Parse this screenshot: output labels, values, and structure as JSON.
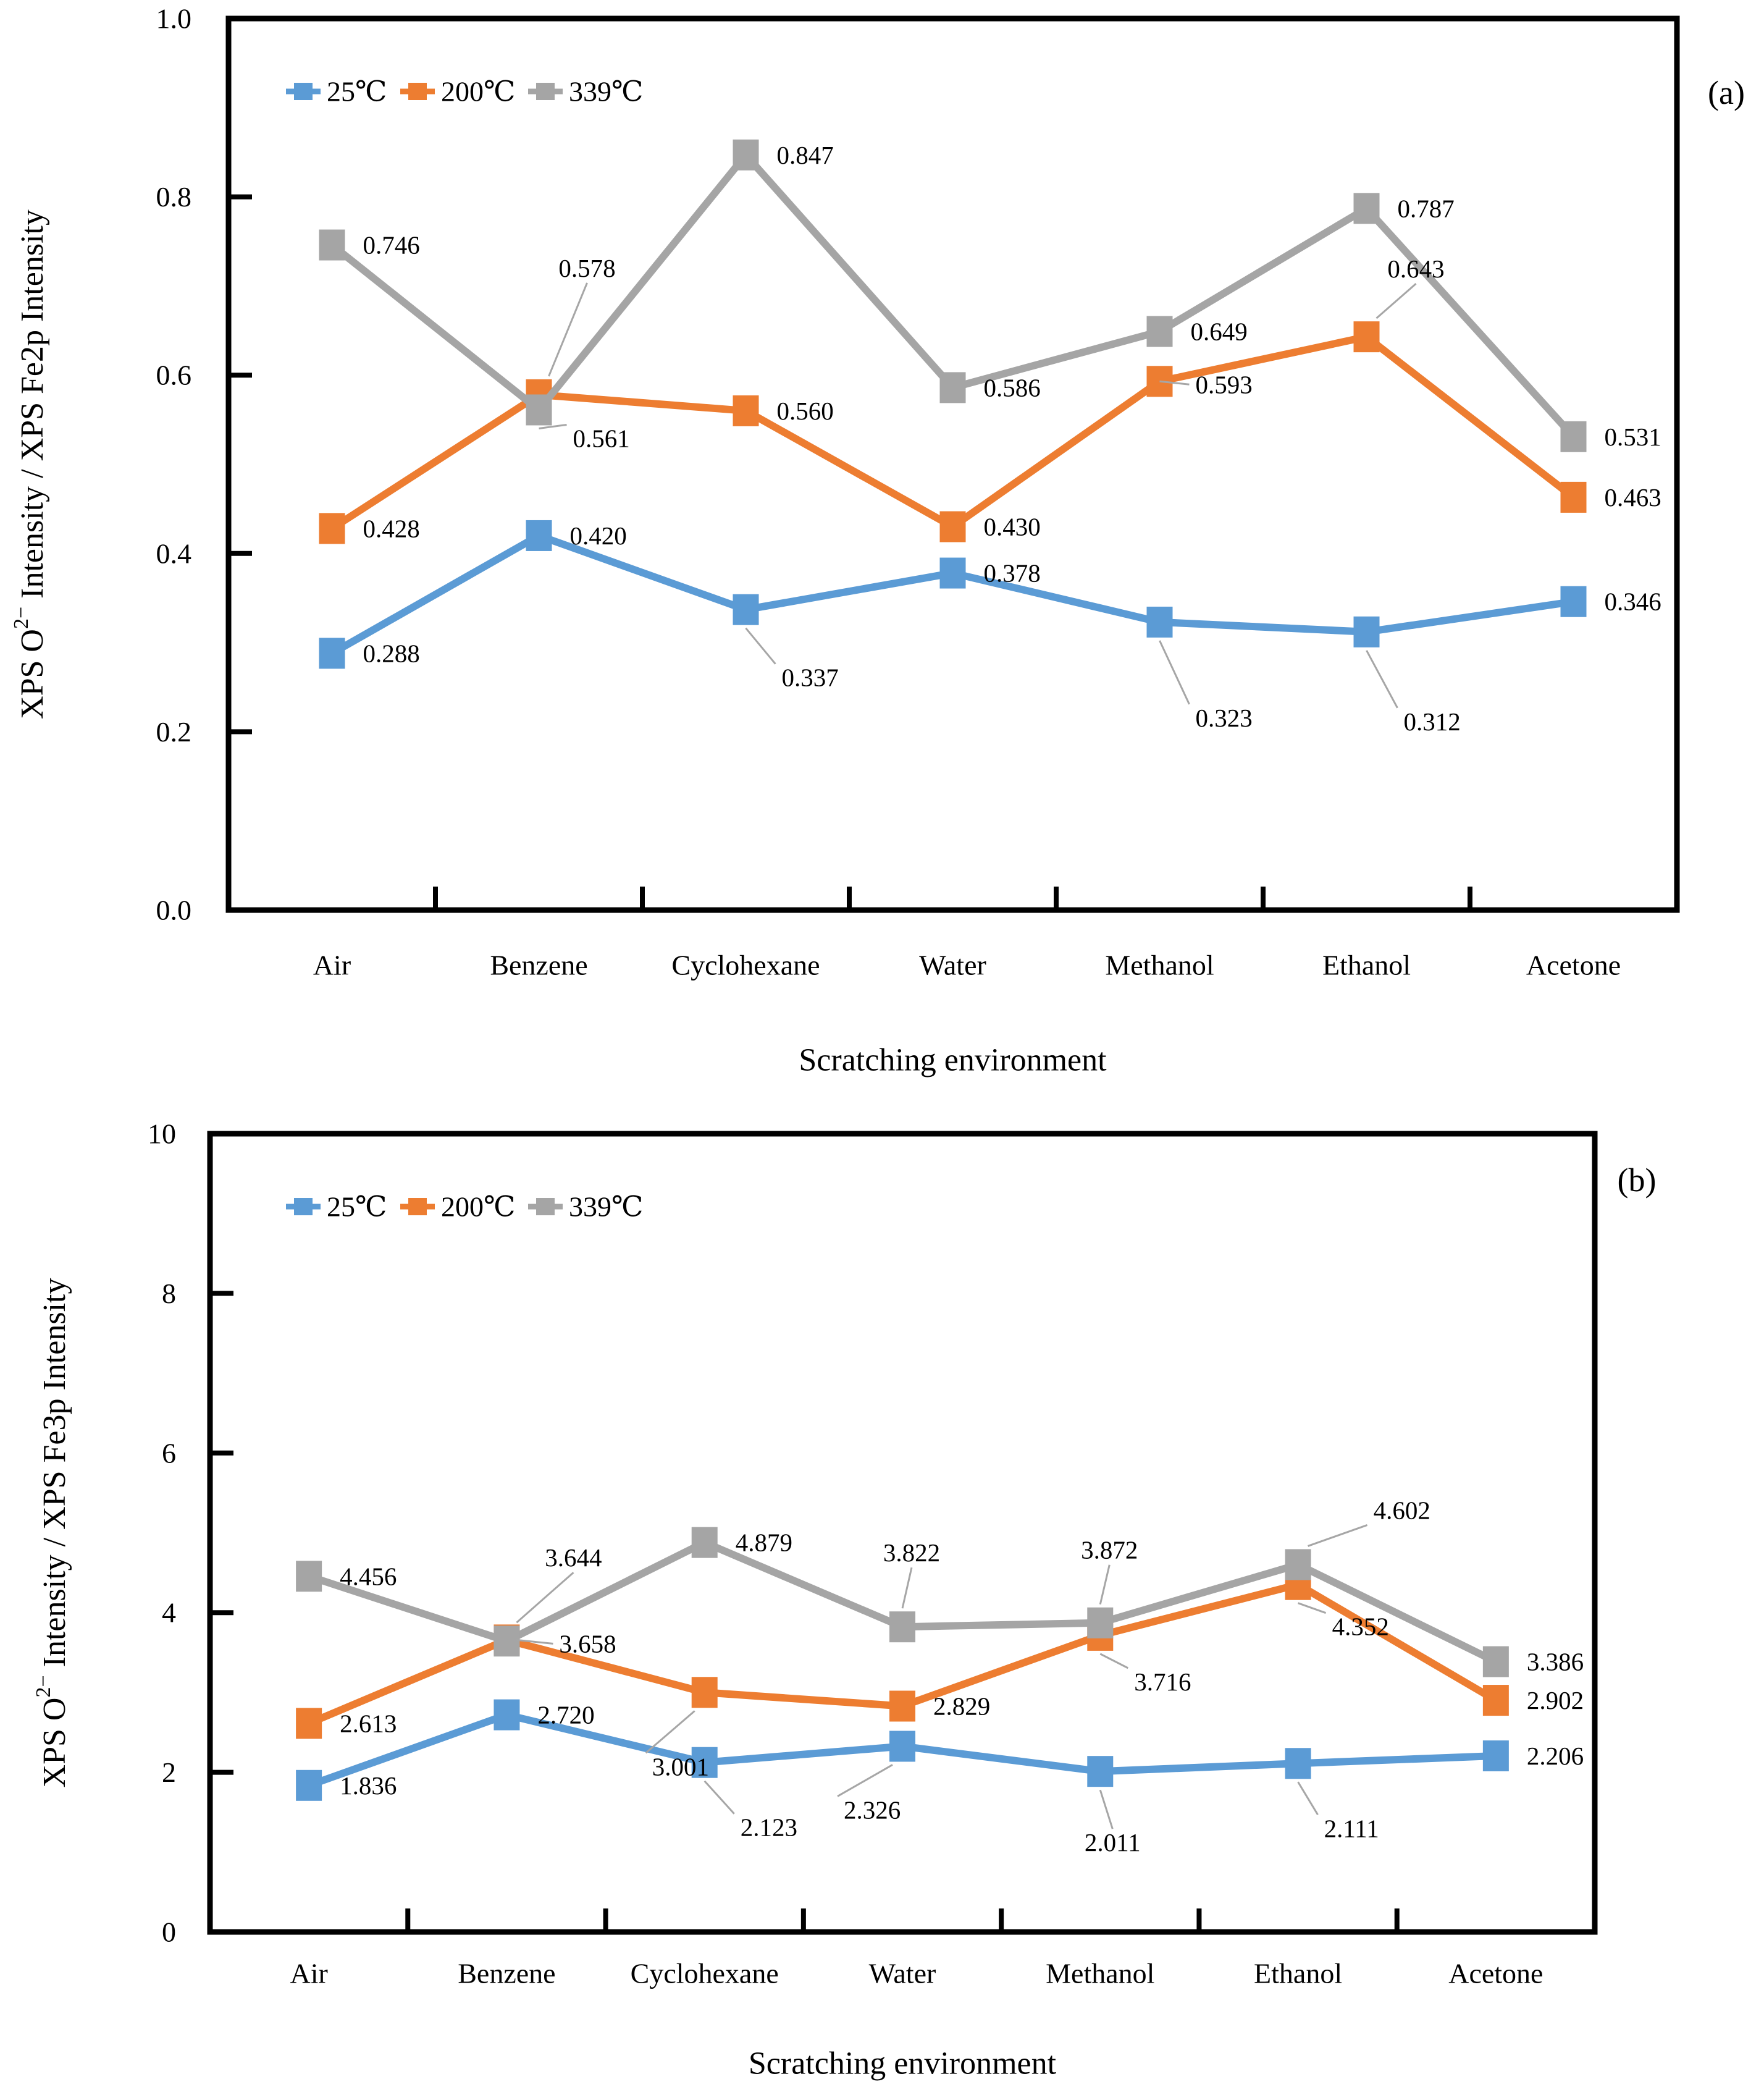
{
  "colors": {
    "series_blue": "#5B9BD5",
    "series_orange": "#ED7D31",
    "series_gray": "#A5A5A5",
    "axis": "#000000",
    "leader_line": "#A6A6A6",
    "background": "#FFFFFF"
  },
  "chart_data": [
    {
      "type": "line",
      "panel_label": "(a)",
      "title": "",
      "xlabel": "Scratching environment",
      "ylabel": {
        "pre": "XPS O",
        "sup": "2−",
        "post": " Intensity / XPS Fe2p Intensity"
      },
      "categories": [
        "Air",
        "Benzene",
        "Cyclohexane",
        "Water",
        "Methanol",
        "Ethanol",
        "Acetone"
      ],
      "ylim": [
        0,
        1.0
      ],
      "ytick_labels": [
        "0.0",
        "0.2",
        "0.4",
        "0.6",
        "0.8",
        "1.0"
      ],
      "ytick_step": 0.2,
      "grid": false,
      "legend_position": "top-left-inside",
      "legend_entries": [
        "25℃",
        "200℃",
        "339℃"
      ],
      "series": [
        {
          "name": "25℃",
          "color_key": "series_blue",
          "values": [
            0.288,
            0.42,
            0.337,
            0.378,
            0.323,
            0.312,
            0.346
          ],
          "labels": [
            "0.288",
            "0.420",
            "0.337",
            "0.378",
            "0.323",
            "0.312",
            "0.346"
          ],
          "label_placement": [
            null,
            null,
            {
              "dx": 58,
              "dy": 110,
              "anchor": "start",
              "leader": true
            },
            null,
            {
              "dx": 58,
              "dy": 155,
              "anchor": "start",
              "leader": true
            },
            {
              "dx": 60,
              "dy": 145,
              "anchor": "start",
              "leader": true
            },
            null
          ]
        },
        {
          "name": "200℃",
          "color_key": "series_orange",
          "values": [
            0.428,
            0.578,
            0.56,
            0.43,
            0.593,
            0.643,
            0.463
          ],
          "labels": [
            "0.428",
            "0.578",
            "0.560",
            "0.430",
            "0.593",
            "0.643",
            "0.463"
          ],
          "label_placement": [
            null,
            {
              "dx": 78,
              "dy": -205,
              "anchor": "middle",
              "leader": true
            },
            null,
            null,
            {
              "dx": 58,
              "dy": 5,
              "anchor": "start",
              "leader": true
            },
            {
              "dx": 80,
              "dy": -110,
              "anchor": "middle",
              "leader": true
            },
            null
          ]
        },
        {
          "name": "339℃",
          "color_key": "series_gray",
          "values": [
            0.746,
            0.561,
            0.847,
            0.586,
            0.649,
            0.787,
            0.531
          ],
          "labels": [
            "0.746",
            "0.561",
            "0.847",
            "0.586",
            "0.649",
            "0.787",
            "0.531"
          ],
          "label_placement": [
            null,
            {
              "dx": 55,
              "dy": 46,
              "anchor": "start",
              "leader": true
            },
            null,
            null,
            null,
            null,
            null
          ]
        }
      ]
    },
    {
      "type": "line",
      "panel_label": "(b)",
      "title": "",
      "xlabel": "Scratching environment",
      "ylabel": {
        "pre": "XPS O",
        "sup": "2−",
        "post": " Intensity / XPS Fe3p Intensity"
      },
      "categories": [
        "Air",
        "Benzene",
        "Cyclohexane",
        "Water",
        "Methanol",
        "Ethanol",
        "Acetone"
      ],
      "ylim": [
        0,
        10
      ],
      "ytick_labels": [
        "0",
        "2",
        "4",
        "6",
        "8",
        "10"
      ],
      "ytick_step": 2,
      "grid": false,
      "legend_position": "top-left-inside",
      "legend_entries": [
        "25℃",
        "200℃",
        "339℃"
      ],
      "series": [
        {
          "name": "25℃",
          "color_key": "series_blue",
          "values": [
            1.836,
            2.72,
            2.123,
            2.326,
            2.011,
            2.111,
            2.206
          ],
          "labels": [
            "1.836",
            "2.720",
            "2.123",
            "2.326",
            "2.011",
            "2.111",
            "2.206"
          ],
          "label_placement": [
            null,
            null,
            {
              "dx": 58,
              "dy": 105,
              "anchor": "start",
              "leader": true
            },
            {
              "dx": -95,
              "dy": 103,
              "anchor": "start",
              "leader": true
            },
            {
              "dx": 20,
              "dy": 115,
              "anchor": "middle",
              "leader": true
            },
            {
              "dx": 42,
              "dy": 105,
              "anchor": "start",
              "leader": true
            },
            null
          ]
        },
        {
          "name": "200℃",
          "color_key": "series_orange",
          "values": [
            2.613,
            3.658,
            3.001,
            2.829,
            3.716,
            4.352,
            2.902
          ],
          "labels": [
            "2.613",
            "3.658",
            "3.001",
            "2.829",
            "3.716",
            "4.352",
            "2.902"
          ],
          "label_placement": [
            null,
            {
              "dx": 85,
              "dy": 6,
              "anchor": "start",
              "leader": true
            },
            {
              "dx": -85,
              "dy": 120,
              "anchor": "start",
              "leader": true
            },
            null,
            {
              "dx": 55,
              "dy": 75,
              "anchor": "start",
              "leader": true
            },
            {
              "dx": 55,
              "dy": 68,
              "anchor": "start",
              "leader": true
            },
            null
          ]
        },
        {
          "name": "339℃",
          "color_key": "series_gray",
          "values": [
            4.456,
            3.644,
            4.879,
            3.822,
            3.872,
            4.602,
            3.386
          ],
          "labels": [
            "4.456",
            "3.644",
            "4.879",
            "3.822",
            "3.872",
            "4.602",
            "3.386"
          ],
          "label_placement": [
            null,
            {
              "dx": 108,
              "dy": -135,
              "anchor": "middle",
              "leader": true
            },
            null,
            {
              "dx": 15,
              "dy": -120,
              "anchor": "middle",
              "leader": true
            },
            {
              "dx": 15,
              "dy": -118,
              "anchor": "middle",
              "leader": true
            },
            {
              "dx": 122,
              "dy": -88,
              "anchor": "start",
              "leader": true
            },
            null
          ]
        }
      ]
    }
  ]
}
